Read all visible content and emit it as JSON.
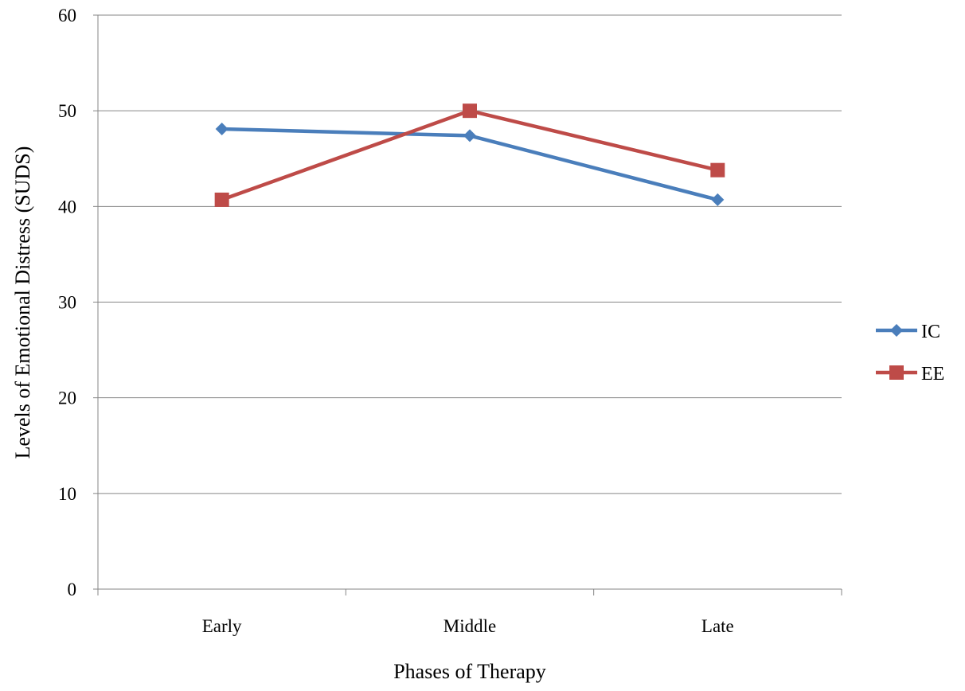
{
  "chart_data": {
    "type": "line",
    "title": "",
    "xlabel": "Phases of Therapy",
    "ylabel": "Levels of Emotional Distress (SUDS)",
    "categories": [
      "Early",
      "Middle",
      "Late"
    ],
    "ylim": [
      0,
      60
    ],
    "yticks": [
      0,
      10,
      20,
      30,
      40,
      50,
      60
    ],
    "ytick_labels": [
      "0",
      "10",
      "20",
      "30",
      "40",
      "50",
      "60"
    ],
    "grid": true,
    "legend_position": "right",
    "series": [
      {
        "name": "IC",
        "values": [
          48.1,
          47.4,
          40.7
        ],
        "color": "#4a7ebb",
        "marker": "diamond"
      },
      {
        "name": "EE",
        "values": [
          40.7,
          50.0,
          43.8
        ],
        "color": "#be4b48",
        "marker": "square"
      }
    ]
  }
}
